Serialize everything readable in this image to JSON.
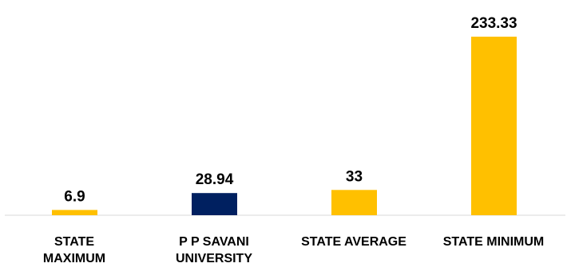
{
  "chart_data": {
    "type": "bar",
    "categories": [
      "STATE\nMAXIMUM",
      "P P SAVANI\nUNIVERSITY",
      "STATE AVERAGE",
      "STATE MINIMUM"
    ],
    "values": [
      6.9,
      28.94,
      33,
      233.33
    ],
    "data_labels": [
      "6.9",
      "28.94",
      "33",
      "233.33"
    ],
    "colors": [
      "#FFC000",
      "#002060",
      "#FFC000",
      "#FFC000"
    ],
    "ylim": [
      0,
      233.33
    ],
    "grid": false,
    "legend": "none"
  }
}
